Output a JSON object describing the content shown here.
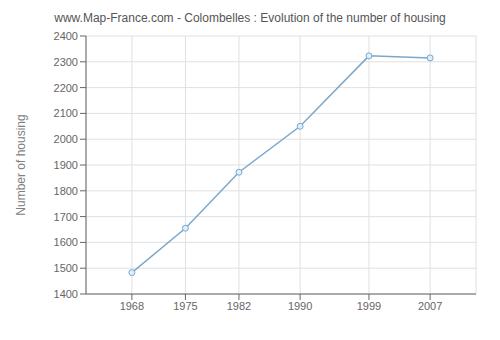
{
  "chart_data": {
    "type": "line",
    "title": "www.Map-France.com - Colombelles : Evolution of the number of housing",
    "ylabel": "Number of housing",
    "x": [
      1968,
      1975,
      1982,
      1990,
      1999,
      2007
    ],
    "values": [
      1483,
      1655,
      1872,
      2050,
      2323,
      2315
    ],
    "color": "#7aa8cc",
    "marker": "circle",
    "xlim": [
      1962,
      2013
    ],
    "xticks": [
      1968,
      1975,
      1982,
      1990,
      1999,
      2007
    ],
    "ylim": [
      1400,
      2400
    ],
    "yticks": [
      1400,
      1500,
      1600,
      1700,
      1800,
      1900,
      2000,
      2100,
      2200,
      2300,
      2400
    ],
    "grid": true
  }
}
